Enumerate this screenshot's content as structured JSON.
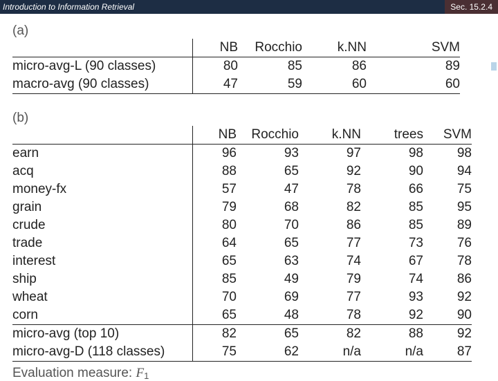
{
  "header": {
    "title": "Introduction to Information Retrieval",
    "section": "Sec. 15.2.4"
  },
  "labels": {
    "a": "(a)",
    "b": "(b)"
  },
  "tableA": {
    "cols": [
      "NB",
      "Rocchio",
      "k.NN",
      "SVM"
    ],
    "rows": [
      {
        "name": "micro-avg-L (90 classes)",
        "vals": [
          "80",
          "85",
          "86",
          "89"
        ]
      },
      {
        "name": "macro-avg (90 classes)",
        "vals": [
          "47",
          "59",
          "60",
          "60"
        ]
      }
    ]
  },
  "tableB": {
    "cols": [
      "NB",
      "Rocchio",
      "k.NN",
      "trees",
      "SVM"
    ],
    "rows": [
      {
        "name": "earn",
        "vals": [
          "96",
          "93",
          "97",
          "98",
          "98"
        ]
      },
      {
        "name": "acq",
        "vals": [
          "88",
          "65",
          "92",
          "90",
          "94"
        ]
      },
      {
        "name": "money-fx",
        "vals": [
          "57",
          "47",
          "78",
          "66",
          "75"
        ]
      },
      {
        "name": "grain",
        "vals": [
          "79",
          "68",
          "82",
          "85",
          "95"
        ]
      },
      {
        "name": "crude",
        "vals": [
          "80",
          "70",
          "86",
          "85",
          "89"
        ]
      },
      {
        "name": "trade",
        "vals": [
          "64",
          "65",
          "77",
          "73",
          "76"
        ]
      },
      {
        "name": "interest",
        "vals": [
          "65",
          "63",
          "74",
          "67",
          "78"
        ]
      },
      {
        "name": "ship",
        "vals": [
          "85",
          "49",
          "79",
          "74",
          "86"
        ]
      },
      {
        "name": "wheat",
        "vals": [
          "70",
          "69",
          "77",
          "93",
          "92"
        ]
      },
      {
        "name": "corn",
        "vals": [
          "65",
          "48",
          "78",
          "92",
          "90"
        ]
      }
    ],
    "summary": [
      {
        "name": "micro-avg (top 10)",
        "vals": [
          "82",
          "65",
          "82",
          "88",
          "92"
        ]
      },
      {
        "name": "micro-avg-D (118 classes)",
        "vals": [
          "75",
          "62",
          "n/a",
          "n/a",
          "87"
        ]
      }
    ]
  },
  "measure": {
    "prefix": "Evaluation measure: ",
    "symbol": "F",
    "sub": "1"
  }
}
